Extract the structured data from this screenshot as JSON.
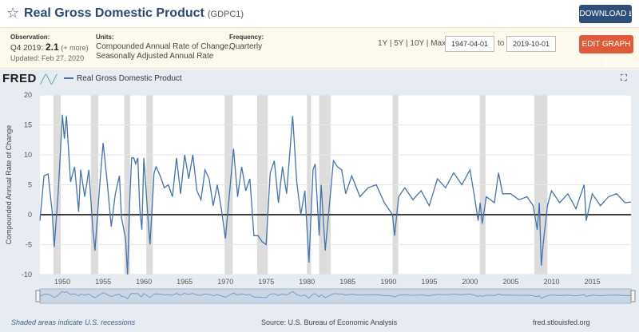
{
  "header": {
    "title": "Real Gross Domestic Product",
    "code": "(GDPC1)",
    "download_label": "DOWNLOAD"
  },
  "meta": {
    "observation_label": "Observation:",
    "observation_period": "Q4 2019:",
    "observation_value": "2.1",
    "observation_more": "(+ more)",
    "updated": "Updated: Feb 27, 2020",
    "units_label": "Units:",
    "units_line1": "Compounded Annual Rate of Change,",
    "units_line2": "Seasonally Adjusted Annual Rate",
    "frequency_label": "Frequency:",
    "frequency_value": "Quarterly",
    "range_links": "1Y | 5Y | 10Y | Max",
    "date_from": "1947-04-01",
    "date_to_label": "to",
    "date_to": "2019-10-01",
    "edit_label": "EDIT GRAPH"
  },
  "chart": {
    "logo": "FRED",
    "legend": "Real Gross Domestic Product",
    "footer_recessions": "Shaded areas indicate U.S. recessions",
    "footer_source": "Source: U.S. Bureau of Economic Analysis",
    "footer_site": "fred.stlouisfed.org"
  },
  "chart_data": {
    "type": "line",
    "title": "Real Gross Domestic Product",
    "ylabel": "Compounded Annual Rate of Change",
    "xlabel": "",
    "xlim": [
      1947.25,
      2019.75
    ],
    "ylim": [
      -10,
      20
    ],
    "yticks": [
      20,
      15,
      10,
      5,
      0,
      -5,
      -10
    ],
    "xticks": [
      1950,
      1955,
      1960,
      1965,
      1970,
      1975,
      1980,
      1985,
      1990,
      1995,
      2000,
      2005,
      2010,
      2015
    ],
    "recessions": [
      [
        1948.9,
        1949.8
      ],
      [
        1953.5,
        1954.4
      ],
      [
        1957.6,
        1958.3
      ],
      [
        1960.3,
        1961.1
      ],
      [
        1969.9,
        1970.9
      ],
      [
        1973.9,
        1975.2
      ],
      [
        1980.0,
        1980.5
      ],
      [
        1981.5,
        1982.9
      ],
      [
        1990.5,
        1991.2
      ],
      [
        2001.2,
        2001.9
      ],
      [
        2007.9,
        2009.5
      ]
    ],
    "series": [
      {
        "name": "Real Gross Domestic Product",
        "x": [
          1947.25,
          1947.75,
          1948.25,
          1948.75,
          1949.0,
          1949.5,
          1950.0,
          1950.25,
          1950.5,
          1951.0,
          1951.5,
          1952.0,
          1952.25,
          1952.75,
          1953.25,
          1953.75,
          1954.0,
          1954.5,
          1955.0,
          1955.5,
          1956.0,
          1956.5,
          1957.0,
          1957.25,
          1957.75,
          1958.0,
          1958.25,
          1958.5,
          1958.75,
          1959.0,
          1959.25,
          1959.5,
          1959.75,
          1960.0,
          1960.5,
          1960.75,
          1961.25,
          1961.5,
          1962.0,
          1962.5,
          1963.0,
          1963.5,
          1964.0,
          1964.5,
          1965.0,
          1965.5,
          1966.0,
          1966.5,
          1967.0,
          1967.5,
          1968.0,
          1968.5,
          1969.0,
          1969.5,
          1970.0,
          1970.5,
          1971.0,
          1971.5,
          1972.0,
          1972.5,
          1973.0,
          1973.5,
          1974.0,
          1974.5,
          1975.0,
          1975.5,
          1976.0,
          1976.5,
          1977.0,
          1977.5,
          1978.25,
          1978.75,
          1979.25,
          1979.75,
          1980.25,
          1980.75,
          1981.0,
          1981.5,
          1981.75,
          1982.25,
          1982.75,
          1983.25,
          1983.75,
          1984.25,
          1984.75,
          1985.5,
          1986.5,
          1987.5,
          1988.5,
          1989.5,
          1990.5,
          1990.75,
          1991.25,
          1992.0,
          1993.0,
          1994.0,
          1995.0,
          1996.0,
          1997.0,
          1998.0,
          1999.0,
          2000.0,
          2000.5,
          2001.0,
          2001.25,
          2001.5,
          2002.0,
          2003.0,
          2003.5,
          2004.0,
          2005.0,
          2006.0,
          2007.0,
          2007.75,
          2008.25,
          2008.5,
          2008.75,
          2009.0,
          2009.5,
          2010.0,
          2011.0,
          2012.0,
          2013.0,
          2014.0,
          2014.25,
          2015.0,
          2016.0,
          2017.0,
          2018.0,
          2019.0,
          2019.75
        ],
        "values": [
          -1.0,
          6.5,
          6.8,
          0.5,
          -5.4,
          4.0,
          16.7,
          12.7,
          16.5,
          5.5,
          8.0,
          0.5,
          7.5,
          3.0,
          7.5,
          -2.5,
          -6.0,
          3.5,
          12.0,
          5.5,
          -2.0,
          3.5,
          6.5,
          -0.5,
          -4.0,
          -10.0,
          2.0,
          9.5,
          9.5,
          8.5,
          9.5,
          1.0,
          -2.5,
          9.5,
          -0.5,
          -5.0,
          7.0,
          8.0,
          6.5,
          4.5,
          5.0,
          3.0,
          9.5,
          3.5,
          10.0,
          6.0,
          10.0,
          4.0,
          2.5,
          7.5,
          6.0,
          1.5,
          5.0,
          1.0,
          -4.0,
          3.5,
          11.0,
          3.0,
          8.0,
          4.0,
          6.0,
          -3.5,
          -3.5,
          -4.5,
          -5.0,
          7.0,
          9.0,
          2.0,
          8.0,
          3.5,
          16.5,
          5.5,
          0.0,
          4.0,
          -8.0,
          7.5,
          8.5,
          -3.5,
          5.0,
          -6.0,
          1.5,
          9.0,
          8.0,
          7.5,
          3.5,
          6.5,
          3.0,
          4.5,
          5.0,
          2.0,
          0.0,
          -3.5,
          3.0,
          4.5,
          2.5,
          4.0,
          1.5,
          6.0,
          4.5,
          7.0,
          5.0,
          7.5,
          3.5,
          -1.0,
          2.0,
          -1.5,
          3.0,
          2.0,
          7.0,
          3.5,
          3.5,
          2.5,
          3.0,
          1.5,
          -2.5,
          2.0,
          -8.5,
          -4.5,
          1.5,
          4.0,
          2.0,
          3.5,
          1.0,
          5.0,
          -1.0,
          3.5,
          1.5,
          3.0,
          3.5,
          2.0,
          2.1
        ]
      }
    ]
  }
}
